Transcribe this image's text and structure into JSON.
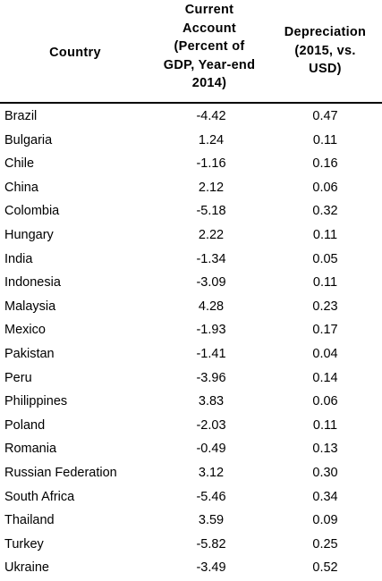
{
  "headers": {
    "country": [
      "Country"
    ],
    "current_account": [
      "Current",
      "Account",
      "(Percent of",
      "GDP, Year-end",
      "2014)"
    ],
    "depreciation": [
      "Depreciation",
      "(2015, vs.",
      "USD)"
    ]
  },
  "rows": [
    {
      "country": "Brazil",
      "current_account": "-4.42",
      "depreciation": "0.47"
    },
    {
      "country": "Bulgaria",
      "current_account": "1.24",
      "depreciation": "0.11"
    },
    {
      "country": "Chile",
      "current_account": "-1.16",
      "depreciation": "0.16"
    },
    {
      "country": "China",
      "current_account": "2.12",
      "depreciation": "0.06"
    },
    {
      "country": "Colombia",
      "current_account": "-5.18",
      "depreciation": "0.32"
    },
    {
      "country": "Hungary",
      "current_account": "2.22",
      "depreciation": "0.11"
    },
    {
      "country": "India",
      "current_account": "-1.34",
      "depreciation": "0.05"
    },
    {
      "country": "Indonesia",
      "current_account": "-3.09",
      "depreciation": "0.11"
    },
    {
      "country": "Malaysia",
      "current_account": "4.28",
      "depreciation": "0.23"
    },
    {
      "country": "Mexico",
      "current_account": "-1.93",
      "depreciation": "0.17"
    },
    {
      "country": "Pakistan",
      "current_account": "-1.41",
      "depreciation": "0.04"
    },
    {
      "country": "Peru",
      "current_account": "-3.96",
      "depreciation": "0.14"
    },
    {
      "country": "Philippines",
      "current_account": "3.83",
      "depreciation": "0.06"
    },
    {
      "country": "Poland",
      "current_account": "-2.03",
      "depreciation": "0.11"
    },
    {
      "country": "Romania",
      "current_account": "-0.49",
      "depreciation": "0.13"
    },
    {
      "country": "Russian Federation",
      "current_account": "3.12",
      "depreciation": "0.30"
    },
    {
      "country": "South Africa",
      "current_account": "-5.46",
      "depreciation": "0.34"
    },
    {
      "country": "Thailand",
      "current_account": "3.59",
      "depreciation": "0.09"
    },
    {
      "country": "Turkey",
      "current_account": "-5.82",
      "depreciation": "0.25"
    },
    {
      "country": "Ukraine",
      "current_account": "-3.49",
      "depreciation": "0.52"
    }
  ]
}
